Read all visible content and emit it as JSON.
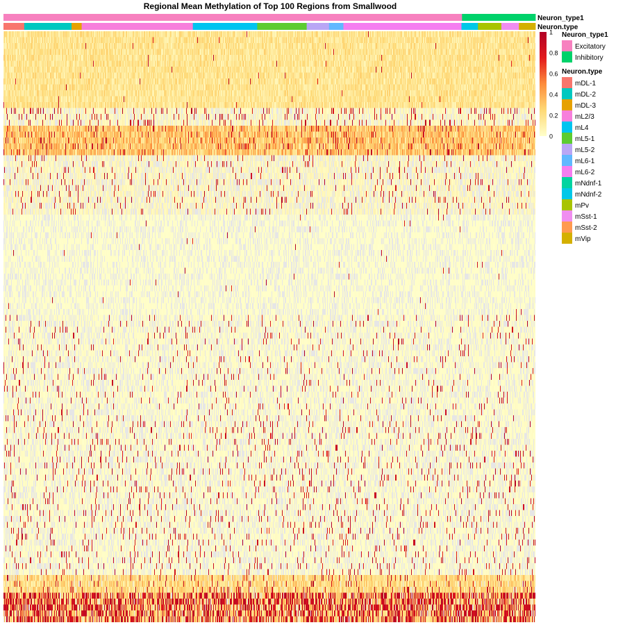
{
  "chart_data": {
    "type": "heatmap",
    "title": "Regional Mean Methylation of Top 100 Regions from Smallwood",
    "color_scale": {
      "min": 0,
      "max": 1,
      "ticks": [
        "0",
        "0.2",
        "0.4",
        "0.6",
        "0.8",
        "1"
      ],
      "tick_values": [
        0,
        0.2,
        0.4,
        0.6,
        0.8,
        1
      ],
      "colors": [
        "#ffffcc",
        "#fed976",
        "#fd8d3c",
        "#e31a1c",
        "#b10026"
      ],
      "na_color": "#e6e6e6"
    },
    "annotations": [
      {
        "name": "Neuron_type1",
        "segments": [
          {
            "label": "Excitatory",
            "share": 0.862
          },
          {
            "label": "Inhibitory",
            "share": 0.138
          }
        ]
      },
      {
        "name": "Neuron.type",
        "segments": [
          {
            "label": "mDL-1",
            "share": 0.039
          },
          {
            "label": "mDL-2",
            "share": 0.089
          },
          {
            "label": "mDL-3",
            "share": 0.019
          },
          {
            "label": "mL2/3",
            "share": 0.209
          },
          {
            "label": "mL4",
            "share": 0.121
          },
          {
            "label": "mL5-1",
            "share": 0.093
          },
          {
            "label": "mL5-2",
            "share": 0.042
          },
          {
            "label": "mL6-1",
            "share": 0.027
          },
          {
            "label": "mL6-2",
            "share": 0.222
          },
          {
            "label": "mNdnf-1",
            "share": 0.0
          },
          {
            "label": "mNdnf-2",
            "share": 0.031
          },
          {
            "label": "mPv",
            "share": 0.044
          },
          {
            "label": "mSst-1",
            "share": 0.033
          },
          {
            "label": "mSst-2",
            "share": 0.0
          },
          {
            "label": "mVip",
            "share": 0.031
          }
        ]
      }
    ],
    "legend": [
      {
        "title": "Neuron_type1",
        "items": [
          {
            "label": "Excitatory",
            "color": "#f781bf"
          },
          {
            "label": "Inhibitory",
            "color": "#00d26a"
          }
        ]
      },
      {
        "title": "Neuron.type",
        "items": [
          {
            "label": "mDL-1",
            "color": "#f8766d"
          },
          {
            "label": "mDL-2",
            "color": "#00c8c0"
          },
          {
            "label": "mDL-3",
            "color": "#e6a100"
          },
          {
            "label": "mL2/3",
            "color": "#f77fdc"
          },
          {
            "label": "mL4",
            "color": "#00c4f0"
          },
          {
            "label": "mL5-1",
            "color": "#5ccc30"
          },
          {
            "label": "mL5-2",
            "color": "#b9a6f5"
          },
          {
            "label": "mL6-1",
            "color": "#60b8ff"
          },
          {
            "label": "mL6-2",
            "color": "#f57ef0"
          },
          {
            "label": "mNdnf-1",
            "color": "#00d4a0"
          },
          {
            "label": "mNdnf-2",
            "color": "#00c8e8"
          },
          {
            "label": "mPv",
            "color": "#a8c400"
          },
          {
            "label": "mSst-1",
            "color": "#f08ef0"
          },
          {
            "label": "mSst-2",
            "color": "#ff9a50"
          },
          {
            "label": "mVip",
            "color": "#d4b000"
          }
        ]
      }
    ],
    "rows": 100,
    "columns": 766
  }
}
